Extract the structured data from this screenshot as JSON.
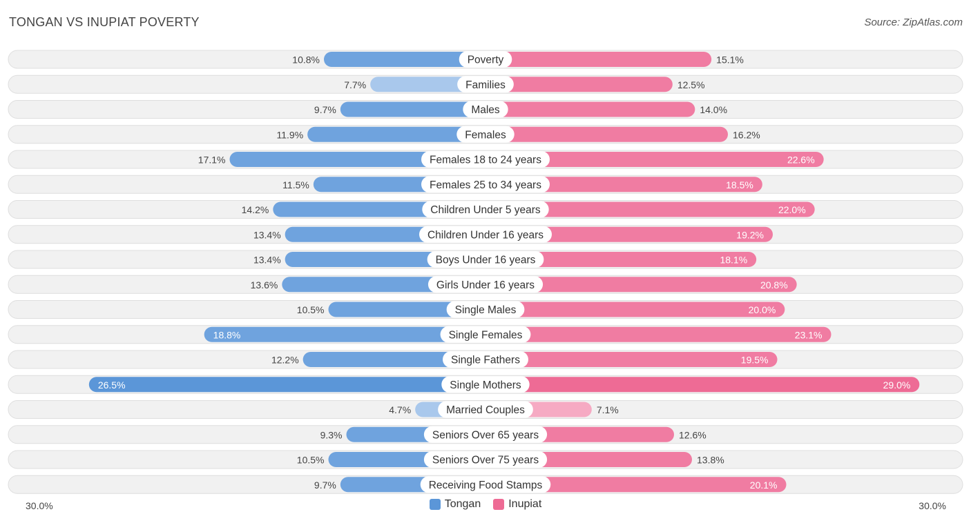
{
  "header": {
    "title": "TONGAN VS INUPIAT POVERTY",
    "source": "Source: ZipAtlas.com"
  },
  "colors": {
    "tongan": "#6fa3de",
    "tongan_strong": "#5b96d8",
    "tongan_light": "#a9c8ec",
    "inupiat": "#f07ca2",
    "inupiat_strong": "#ee6b95",
    "inupiat_light": "#f6aac3",
    "row_bg": "#f1f1f1",
    "row_border": "#dedede"
  },
  "chart_data": {
    "type": "bar",
    "orientation": "horizontal-diverging",
    "title": "TONGAN VS INUPIAT POVERTY",
    "xlim": [
      -30,
      30
    ],
    "axis_left_label": "30.0%",
    "axis_right_label": "30.0%",
    "categories": [
      "Poverty",
      "Families",
      "Males",
      "Females",
      "Females 18 to 24 years",
      "Females 25 to 34 years",
      "Children Under 5 years",
      "Children Under 16 years",
      "Boys Under 16 years",
      "Girls Under 16 years",
      "Single Males",
      "Single Females",
      "Single Fathers",
      "Single Mothers",
      "Married Couples",
      "Seniors Over 65 years",
      "Seniors Over 75 years",
      "Receiving Food Stamps"
    ],
    "series": [
      {
        "name": "Tongan",
        "values": [
          10.8,
          7.7,
          9.7,
          11.9,
          17.1,
          11.5,
          14.2,
          13.4,
          13.4,
          13.6,
          10.5,
          18.8,
          12.2,
          26.5,
          4.7,
          9.3,
          10.5,
          9.7
        ],
        "labels": [
          "10.8%",
          "7.7%",
          "9.7%",
          "11.9%",
          "17.1%",
          "11.5%",
          "14.2%",
          "13.4%",
          "13.4%",
          "13.6%",
          "10.5%",
          "18.8%",
          "12.2%",
          "26.5%",
          "4.7%",
          "9.3%",
          "10.5%",
          "9.7%"
        ]
      },
      {
        "name": "Inupiat",
        "values": [
          15.1,
          12.5,
          14.0,
          16.2,
          22.6,
          18.5,
          22.0,
          19.2,
          18.1,
          20.8,
          20.0,
          23.1,
          19.5,
          29.0,
          7.1,
          12.6,
          13.8,
          20.1
        ],
        "labels": [
          "15.1%",
          "12.5%",
          "14.0%",
          "16.2%",
          "22.6%",
          "18.5%",
          "22.0%",
          "19.2%",
          "18.1%",
          "20.8%",
          "20.0%",
          "23.1%",
          "19.5%",
          "29.0%",
          "7.1%",
          "12.6%",
          "13.8%",
          "20.1%"
        ]
      }
    ],
    "legend": [
      "Tongan",
      "Inupiat"
    ],
    "legend_position": "bottom-center"
  }
}
